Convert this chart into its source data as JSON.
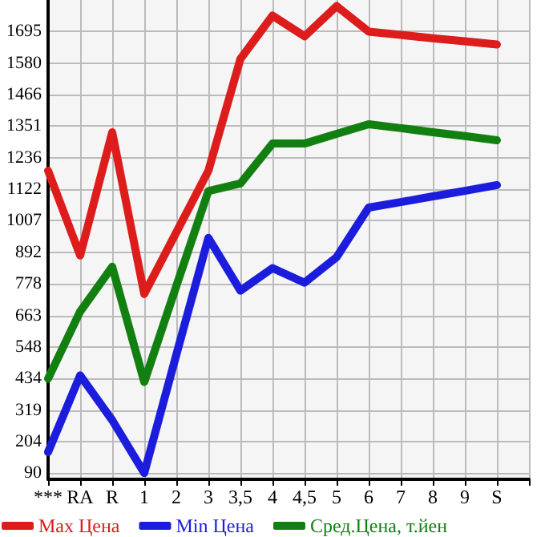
{
  "chart_data": {
    "type": "line",
    "categories": [
      "***",
      "RA",
      "R",
      "1",
      "2",
      "3",
      "3,5",
      "4",
      "4,5",
      "5",
      "6",
      "7",
      "8",
      "9",
      "S"
    ],
    "series": [
      {
        "name": "Max Цена",
        "color": "#dd1c1c",
        "values": [
          1189,
          881,
          1329,
          741,
          965,
          1189,
          1596,
          1753,
          1678,
          1788,
          1695,
          1683,
          1671,
          1660,
          1648
        ]
      },
      {
        "name": "Min Цена",
        "color": "#1c1cdd",
        "values": [
          166,
          445,
          282,
          90,
          520,
          945,
          753,
          835,
          782,
          875,
          1055,
          1075,
          1096,
          1116,
          1137
        ]
      },
      {
        "name": "Сред.Цена, т.йен",
        "color": "#118011",
        "values": [
          433,
          677,
          840,
          421,
          770,
          1115,
          1143,
          1288,
          1288,
          1323,
          1358,
          1344,
          1329,
          1315,
          1300
        ]
      }
    ],
    "ylim": [
      67,
      1810
    ],
    "yticks": [
      90,
      204,
      319,
      434,
      548,
      663,
      778,
      892,
      1007,
      1122,
      1236,
      1351,
      1466,
      1580,
      1695
    ],
    "grid": true,
    "legend": "bottom",
    "marker": "none",
    "line_style": "solid"
  }
}
